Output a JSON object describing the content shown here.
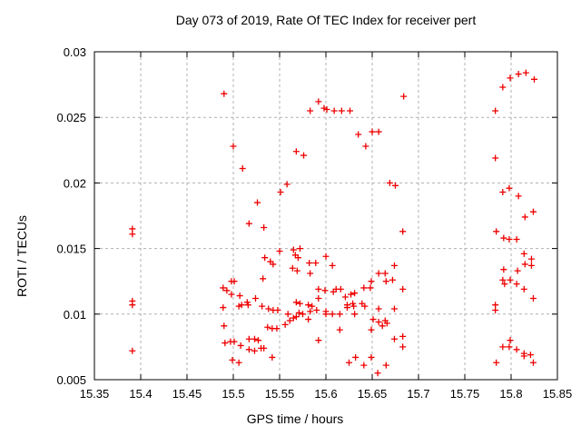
{
  "page": {
    "background": "#ffffff"
  },
  "chart_data": {
    "type": "scatter",
    "title": "Day 073 of 2019, Rate Of TEC Index for receiver pert",
    "xlabel": "GPS time / hours",
    "ylabel": "ROTI / TECUs",
    "xlim": [
      15.35,
      15.85
    ],
    "ylim": [
      0.005,
      0.03
    ],
    "xticks": [
      15.35,
      15.4,
      15.45,
      15.5,
      15.55,
      15.6,
      15.65,
      15.7,
      15.75,
      15.8,
      15.85
    ],
    "xtick_labels": [
      "15.35",
      "15.4",
      "15.45",
      "15.5",
      "15.55",
      "15.6",
      "15.65",
      "15.7",
      "15.75",
      "15.8",
      "15.85"
    ],
    "yticks": [
      0.005,
      0.01,
      0.015,
      0.02,
      0.025,
      0.03
    ],
    "ytick_labels": [
      "0.005",
      "0.01",
      "0.015",
      "0.02",
      "0.025",
      "0.03"
    ],
    "grid": true,
    "legend": "none",
    "marker": "plus",
    "marker_color": "#ee0000",
    "grid_color": "#b0b0b0",
    "axis_color": "#000000",
    "background_color": "#ffffff",
    "points": [
      [
        15.391,
        0.0165
      ],
      [
        15.391,
        0.0161
      ],
      [
        15.391,
        0.011
      ],
      [
        15.391,
        0.0107
      ],
      [
        15.391,
        0.0072
      ],
      [
        15.49,
        0.0268
      ],
      [
        15.5,
        0.0228
      ],
      [
        15.51,
        0.0211
      ],
      [
        15.526,
        0.0185
      ],
      [
        15.551,
        0.0193
      ],
      [
        15.558,
        0.0199
      ],
      [
        15.568,
        0.0224
      ],
      [
        15.576,
        0.0221
      ],
      [
        15.583,
        0.0255
      ],
      [
        15.592,
        0.0262
      ],
      [
        15.598,
        0.0257
      ],
      [
        15.601,
        0.0256
      ],
      [
        15.609,
        0.0255
      ],
      [
        15.617,
        0.0255
      ],
      [
        15.626,
        0.0255
      ],
      [
        15.635,
        0.0237
      ],
      [
        15.643,
        0.0228
      ],
      [
        15.65,
        0.0239
      ],
      [
        15.657,
        0.0239
      ],
      [
        15.669,
        0.02
      ],
      [
        15.675,
        0.0198
      ],
      [
        15.684,
        0.0266
      ],
      [
        15.517,
        0.0169
      ],
      [
        15.533,
        0.0166
      ],
      [
        15.532,
        0.0127
      ],
      [
        15.534,
        0.0143
      ],
      [
        15.54,
        0.014
      ],
      [
        15.543,
        0.0138
      ],
      [
        15.55,
        0.0148
      ],
      [
        15.564,
        0.0135
      ],
      [
        15.565,
        0.0149
      ],
      [
        15.567,
        0.0145
      ],
      [
        15.569,
        0.0133
      ],
      [
        15.57,
        0.0143
      ],
      [
        15.572,
        0.015
      ],
      [
        15.582,
        0.0139
      ],
      [
        15.589,
        0.0139
      ],
      [
        15.583,
        0.0131
      ],
      [
        15.6,
        0.0144
      ],
      [
        15.607,
        0.0137
      ],
      [
        15.683,
        0.0163
      ],
      [
        15.489,
        0.012
      ],
      [
        15.493,
        0.0118
      ],
      [
        15.498,
        0.0125
      ],
      [
        15.501,
        0.0125
      ],
      [
        15.498,
        0.0115
      ],
      [
        15.507,
        0.0114
      ],
      [
        15.509,
        0.0107
      ],
      [
        15.515,
        0.0109
      ],
      [
        15.524,
        0.0112
      ],
      [
        15.489,
        0.0105
      ],
      [
        15.506,
        0.0106
      ],
      [
        15.516,
        0.0107
      ],
      [
        15.531,
        0.0106
      ],
      [
        15.538,
        0.0104
      ],
      [
        15.543,
        0.0103
      ],
      [
        15.548,
        0.0103
      ],
      [
        15.559,
        0.01
      ],
      [
        15.568,
        0.0109
      ],
      [
        15.572,
        0.0108
      ],
      [
        15.581,
        0.0107
      ],
      [
        15.585,
        0.0106
      ],
      [
        15.583,
        0.0102
      ],
      [
        15.571,
        0.0101
      ],
      [
        15.575,
        0.01
      ],
      [
        15.592,
        0.0119
      ],
      [
        15.599,
        0.0118
      ],
      [
        15.608,
        0.0117
      ],
      [
        15.611,
        0.0119
      ],
      [
        15.616,
        0.0119
      ],
      [
        15.621,
        0.0113
      ],
      [
        15.627,
        0.0115
      ],
      [
        15.631,
        0.0116
      ],
      [
        15.641,
        0.012
      ],
      [
        15.648,
        0.012
      ],
      [
        15.649,
        0.0125
      ],
      [
        15.657,
        0.0131
      ],
      [
        15.664,
        0.0131
      ],
      [
        15.665,
        0.0125
      ],
      [
        15.672,
        0.0126
      ],
      [
        15.674,
        0.0137
      ],
      [
        15.683,
        0.0119
      ],
      [
        15.592,
        0.0112
      ],
      [
        15.623,
        0.0107
      ],
      [
        15.629,
        0.0108
      ],
      [
        15.623,
        0.0105
      ],
      [
        15.63,
        0.0106
      ],
      [
        15.639,
        0.0108
      ],
      [
        15.642,
        0.0106
      ],
      [
        15.59,
        0.0103
      ],
      [
        15.6,
        0.0102
      ],
      [
        15.6,
        0.01
      ],
      [
        15.607,
        0.01
      ],
      [
        15.615,
        0.01
      ],
      [
        15.631,
        0.01
      ],
      [
        15.657,
        0.0104
      ],
      [
        15.674,
        0.0104
      ],
      [
        15.49,
        0.0091
      ],
      [
        15.537,
        0.009
      ],
      [
        15.542,
        0.0089
      ],
      [
        15.547,
        0.0089
      ],
      [
        15.556,
        0.0092
      ],
      [
        15.561,
        0.0095
      ],
      [
        15.565,
        0.0097
      ],
      [
        15.568,
        0.0098
      ],
      [
        15.581,
        0.0096
      ],
      [
        15.651,
        0.0096
      ],
      [
        15.657,
        0.0094
      ],
      [
        15.664,
        0.0095
      ],
      [
        15.666,
        0.0093
      ],
      [
        15.661,
        0.0091
      ],
      [
        15.649,
        0.0088
      ],
      [
        15.615,
        0.0088
      ],
      [
        15.592,
        0.008
      ],
      [
        15.674,
        0.0081
      ],
      [
        15.683,
        0.0083
      ],
      [
        15.683,
        0.0075
      ],
      [
        15.517,
        0.0081
      ],
      [
        15.523,
        0.0081
      ],
      [
        15.527,
        0.008
      ],
      [
        15.491,
        0.0078
      ],
      [
        15.497,
        0.0079
      ],
      [
        15.501,
        0.0079
      ],
      [
        15.508,
        0.0076
      ],
      [
        15.517,
        0.0073
      ],
      [
        15.523,
        0.0072
      ],
      [
        15.53,
        0.0074
      ],
      [
        15.533,
        0.0074
      ],
      [
        15.542,
        0.0067
      ],
      [
        15.499,
        0.0065
      ],
      [
        15.506,
        0.0063
      ],
      [
        15.625,
        0.0063
      ],
      [
        15.632,
        0.0067
      ],
      [
        15.641,
        0.0061
      ],
      [
        15.649,
        0.0067
      ],
      [
        15.656,
        0.0055
      ],
      [
        15.665,
        0.0061
      ],
      [
        15.799,
        0.028
      ],
      [
        15.808,
        0.0283
      ],
      [
        15.816,
        0.0284
      ],
      [
        15.825,
        0.0279
      ],
      [
        15.791,
        0.0273
      ],
      [
        15.783,
        0.0255
      ],
      [
        15.783,
        0.0219
      ],
      [
        15.798,
        0.0196
      ],
      [
        15.791,
        0.0193
      ],
      [
        15.808,
        0.019
      ],
      [
        15.824,
        0.0178
      ],
      [
        15.815,
        0.0174
      ],
      [
        15.784,
        0.0163
      ],
      [
        15.792,
        0.0158
      ],
      [
        15.798,
        0.0157
      ],
      [
        15.806,
        0.0157
      ],
      [
        15.814,
        0.0146
      ],
      [
        15.822,
        0.0142
      ],
      [
        15.815,
        0.0138
      ],
      [
        15.822,
        0.0137
      ],
      [
        15.792,
        0.0134
      ],
      [
        15.807,
        0.0133
      ],
      [
        15.791,
        0.0126
      ],
      [
        15.799,
        0.0126
      ],
      [
        15.793,
        0.0123
      ],
      [
        15.806,
        0.0123
      ],
      [
        15.814,
        0.0119
      ],
      [
        15.824,
        0.0112
      ],
      [
        15.783,
        0.0107
      ],
      [
        15.783,
        0.0103
      ],
      [
        15.799,
        0.008
      ],
      [
        15.791,
        0.0075
      ],
      [
        15.798,
        0.0075
      ],
      [
        15.806,
        0.0073
      ],
      [
        15.814,
        0.007
      ],
      [
        15.814,
        0.0068
      ],
      [
        15.821,
        0.0069
      ],
      [
        15.824,
        0.0063
      ],
      [
        15.784,
        0.0063
      ]
    ]
  }
}
